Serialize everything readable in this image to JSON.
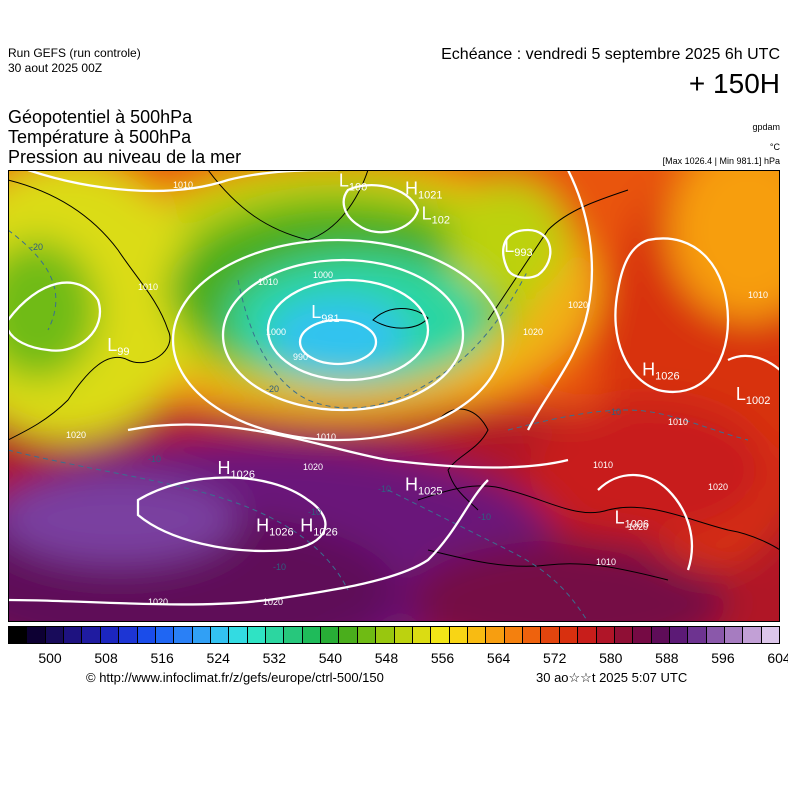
{
  "header": {
    "run": "Run GEFS (run controle)",
    "run_date": "30 aout 2025 00Z",
    "echeance": "Echéance : vendredi 5 septembre 2025 6h UTC",
    "lead_time": "+ 150H",
    "layers": [
      "Géopotentiel à 500hPa",
      "Température à 500hPa",
      "Pression au niveau de la mer"
    ],
    "unit_geopotential": "gpdam",
    "unit_temperature": "°C",
    "max_min": "[Max 1026.4 | Min 981.1] hPa"
  },
  "map": {
    "pressure_centers": [
      {
        "type": "L",
        "value": "981",
        "lat": 62,
        "lon": -25
      },
      {
        "type": "L",
        "value": "993",
        "lat": 70,
        "lon": 10
      },
      {
        "type": "L",
        "value": "99",
        "lat": 58,
        "lon": -62
      },
      {
        "type": "L",
        "value": "100",
        "lat": 78,
        "lon": -20
      },
      {
        "type": "L",
        "value": "102",
        "lat": 74,
        "lon": -5
      },
      {
        "type": "L",
        "value": "1002",
        "lat": 52,
        "lon": 52
      },
      {
        "type": "L",
        "value": "1006",
        "lat": 37,
        "lon": 30
      },
      {
        "type": "H",
        "value": "1021",
        "lat": 77,
        "lon": -8
      },
      {
        "type": "H",
        "value": "1026",
        "lat": 55,
        "lon": 35
      },
      {
        "type": "H",
        "value": "1026",
        "lat": 43,
        "lon": -42
      },
      {
        "type": "H",
        "value": "1026",
        "lat": 36,
        "lon": -35
      },
      {
        "type": "H",
        "value": "1026",
        "lat": 36,
        "lon": -27
      },
      {
        "type": "H",
        "value": "1025",
        "lat": 41,
        "lon": -8
      }
    ],
    "isobar_labels": [
      "1010",
      "1010",
      "1010",
      "1000",
      "1000",
      "990",
      "1010",
      "1020",
      "1020",
      "1020",
      "1020",
      "1020",
      "1020",
      "1010",
      "1010",
      "1020",
      "1010",
      "1020",
      "1010"
    ],
    "temperature_labels": [
      "-20",
      "-20",
      "-10",
      "-10",
      "-10",
      "-10",
      "-10",
      "-10"
    ]
  },
  "colorbar": {
    "colors": [
      "#000000",
      "#0d0033",
      "#180b5a",
      "#1e1280",
      "#1f1ba0",
      "#1c26bf",
      "#1d35d4",
      "#1a4cea",
      "#1f66f3",
      "#2a80f6",
      "#31a0f5",
      "#33c2f1",
      "#33dbe2",
      "#2fe3c4",
      "#2cd6a0",
      "#27c77c",
      "#1fbb5a",
      "#28ae36",
      "#4aae1c",
      "#6fbb14",
      "#98c70f",
      "#bcd20f",
      "#dbdc13",
      "#f2e617",
      "#f8d515",
      "#f8bb12",
      "#f79e10",
      "#f4800e",
      "#ee620d",
      "#e3450e",
      "#d8300f",
      "#c81e1b",
      "#b01528",
      "#8f0f35",
      "#750a44",
      "#5e0c58",
      "#5c1a76",
      "#6d3390",
      "#8a58aa",
      "#a67cc0",
      "#c2a0d6",
      "#dcc6ea"
    ],
    "ticks": [
      "500",
      "508",
      "516",
      "524",
      "532",
      "540",
      "548",
      "556",
      "564",
      "572",
      "580",
      "588",
      "596",
      "604"
    ]
  },
  "footer": {
    "credit": "© http://www.infoclimat.fr/z/gefs/europe/ctrl-500/150",
    "created": "30 ao☆☆t 2025  5:07 UTC"
  }
}
